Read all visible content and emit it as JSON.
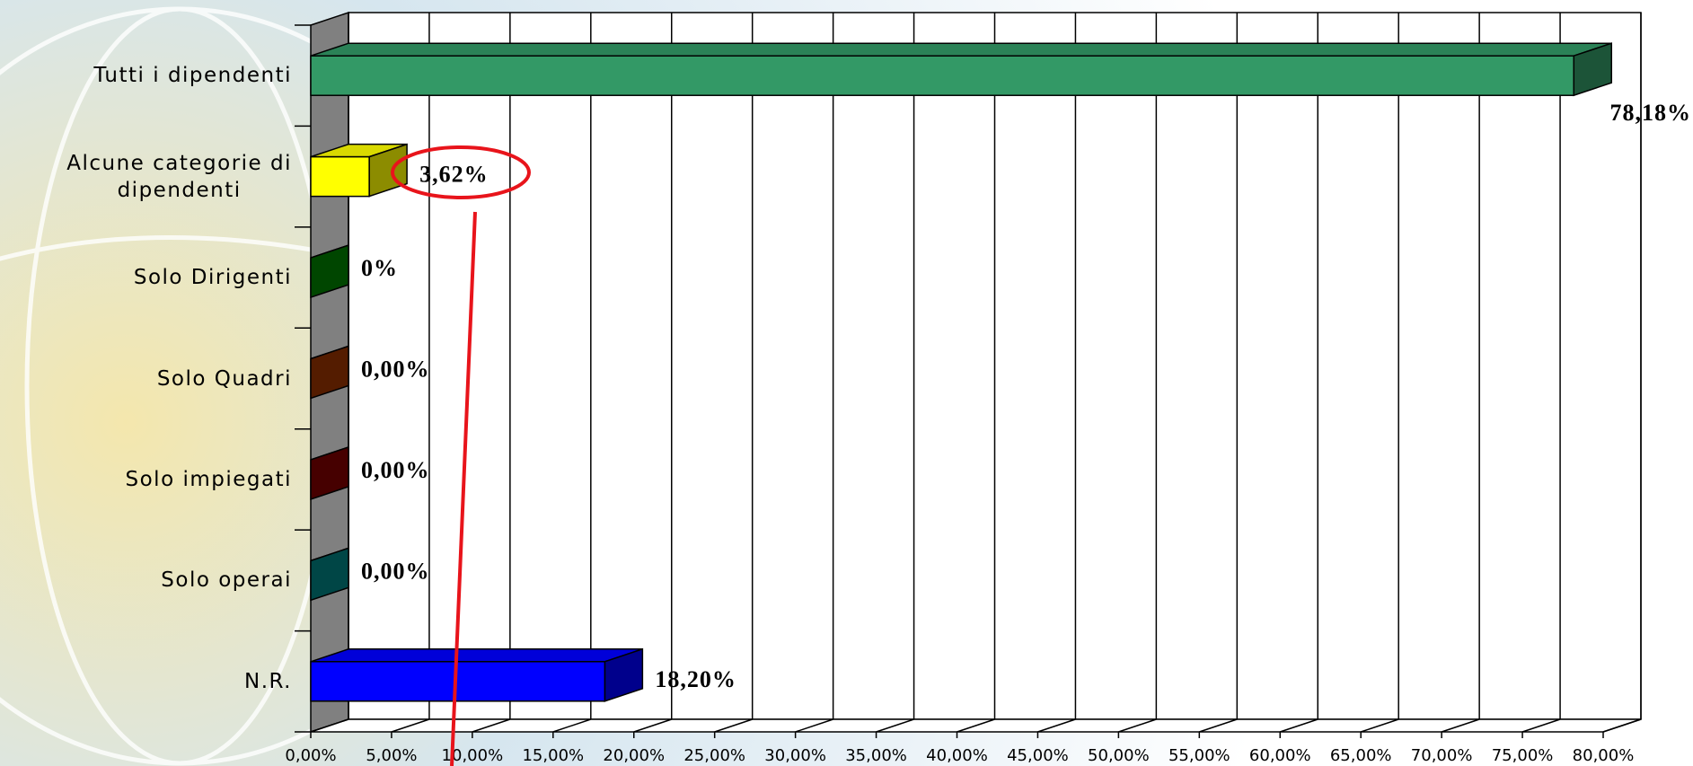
{
  "chart_data": {
    "type": "bar3d-horizontal",
    "categories": [
      "Tutti i dipendenti",
      "Alcune categorie di\ndipendenti",
      "Solo Dirigenti",
      "Solo Quadri",
      "Solo impiegati",
      "Solo operai",
      "N.R."
    ],
    "values": [
      78.18,
      3.62,
      0,
      0,
      0,
      0,
      18.2
    ],
    "value_labels": [
      "78,18%",
      "3,62%",
      "0%",
      "0,00%",
      "0,00%",
      "0,00%",
      "18,20%"
    ],
    "colors": [
      "#339966",
      "#ffff00",
      "#008000",
      "#993300",
      "#800000",
      "#008080",
      "#0000ff"
    ],
    "xlim": [
      0,
      80
    ],
    "xticks": [
      {
        "value": 0,
        "label": "0,00%"
      },
      {
        "value": 5,
        "label": "5,00%"
      },
      {
        "value": 10,
        "label": "10,00%"
      },
      {
        "value": 15,
        "label": "15,00%"
      },
      {
        "value": 20,
        "label": "20,00%"
      },
      {
        "value": 25,
        "label": "25,00%"
      },
      {
        "value": 30,
        "label": "30,00%"
      },
      {
        "value": 35,
        "label": "35,00%"
      },
      {
        "value": 40,
        "label": "40,00%"
      },
      {
        "value": 45,
        "label": "45,00%"
      },
      {
        "value": 50,
        "label": "50,00%"
      },
      {
        "value": 55,
        "label": "55,00%"
      },
      {
        "value": 60,
        "label": "60,00%"
      },
      {
        "value": 65,
        "label": "65,00%"
      },
      {
        "value": 70,
        "label": "70,00%"
      },
      {
        "value": 75,
        "label": "75,00%"
      },
      {
        "value": 80,
        "label": "80,00%"
      }
    ],
    "grid": true
  }
}
